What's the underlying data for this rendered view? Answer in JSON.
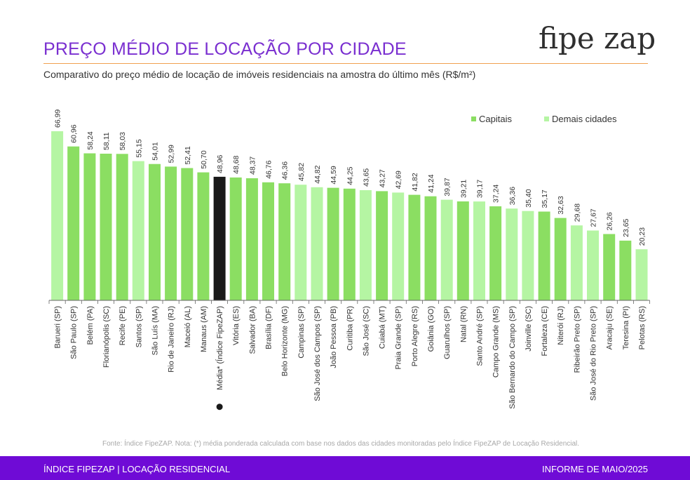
{
  "header": {
    "title": "PREÇO MÉDIO DE LOCAÇÃO POR CIDADE",
    "subtitle": "Comparativo do preço médio de locação de imóveis residenciais na amostra do último mês (R$/m²)",
    "logo_left": "fipe",
    "logo_right": "zap"
  },
  "legend": {
    "capitais": "Capitais",
    "demais": "Demais cidades"
  },
  "colors": {
    "capital": "#8bde62",
    "demais": "#b5f5a3",
    "media": "#1a1a1a",
    "accent": "#7a2fd0",
    "footer_bg": "#6f0bd6"
  },
  "chart_data": {
    "type": "bar",
    "ylabel": "",
    "xlabel": "",
    "ylim": [
      0,
      67
    ],
    "grid": false,
    "legend_position": "top-right",
    "categories": [
      "Barueri (SP)",
      "São Paulo (SP)",
      "Belém (PA)",
      "Florianópolis (SC)",
      "Recife (PE)",
      "Santos (SP)",
      "São Luís (MA)",
      "Rio de Janeiro (RJ)",
      "Maceió (AL)",
      "Manaus (AM)",
      "Média* (Índice FipeZAP)",
      "Vitória (ES)",
      "Salvador (BA)",
      "Brasília (DF)",
      "Belo Horizonte (MG)",
      "Campinas (SP)",
      "São José dos Campos (SP)",
      "João Pessoa (PB)",
      "Curitiba (PR)",
      "São José (SC)",
      "Cuiabá (MT)",
      "Praia Grande (SP)",
      "Porto Alegre (RS)",
      "Goiânia (GO)",
      "Guarulhos (SP)",
      "Natal (RN)",
      "Santo André (SP)",
      "Campo Grande (MS)",
      "São Bernardo do Campo (SP)",
      "Joinville (SC)",
      "Fortaleza (CE)",
      "Niterói (RJ)",
      "Ribeirão Preto (SP)",
      "São José do Rio Preto (SP)",
      "Aracaju (SE)",
      "Teresina (PI)",
      "Pelotas (RS)"
    ],
    "values": [
      66.99,
      60.96,
      58.24,
      58.11,
      58.03,
      55.15,
      54.01,
      52.99,
      52.41,
      50.7,
      48.96,
      48.68,
      48.37,
      46.76,
      46.36,
      45.82,
      44.82,
      44.59,
      44.25,
      43.65,
      43.27,
      42.69,
      41.82,
      41.24,
      39.87,
      39.21,
      39.17,
      37.24,
      36.36,
      35.4,
      35.17,
      32.63,
      29.68,
      27.67,
      26.26,
      23.65,
      20.23
    ],
    "value_labels": [
      "66,99",
      "60,96",
      "58,24",
      "58,11",
      "58,03",
      "55,15",
      "54,01",
      "52,99",
      "52,41",
      "50,70",
      "48,96",
      "48,68",
      "48,37",
      "46,76",
      "46,36",
      "45,82",
      "44,82",
      "44,59",
      "44,25",
      "43,65",
      "43,27",
      "42,69",
      "41,82",
      "41,24",
      "39,87",
      "39,21",
      "39,17",
      "37,24",
      "36,36",
      "35,40",
      "35,17",
      "32,63",
      "29,68",
      "27,67",
      "26,26",
      "23,65",
      "20,23"
    ],
    "groups": [
      "demais",
      "capital",
      "capital",
      "capital",
      "capital",
      "demais",
      "capital",
      "capital",
      "capital",
      "capital",
      "media",
      "capital",
      "capital",
      "capital",
      "capital",
      "demais",
      "demais",
      "capital",
      "capital",
      "demais",
      "capital",
      "demais",
      "capital",
      "capital",
      "demais",
      "capital",
      "demais",
      "capital",
      "demais",
      "demais",
      "capital",
      "capital",
      "demais",
      "demais",
      "capital",
      "capital",
      "demais"
    ]
  },
  "footnote": "Fonte: Índice FipeZAP. Nota: (*) média ponderada calculada com base nos dados das cidades monitoradas pelo Índice FipeZAP de Locação Residencial.",
  "footer": {
    "left": "ÍNDICE FIPEZAP | LOCAÇÃO RESIDENCIAL",
    "right": "INFORME DE MAIO/2025"
  }
}
